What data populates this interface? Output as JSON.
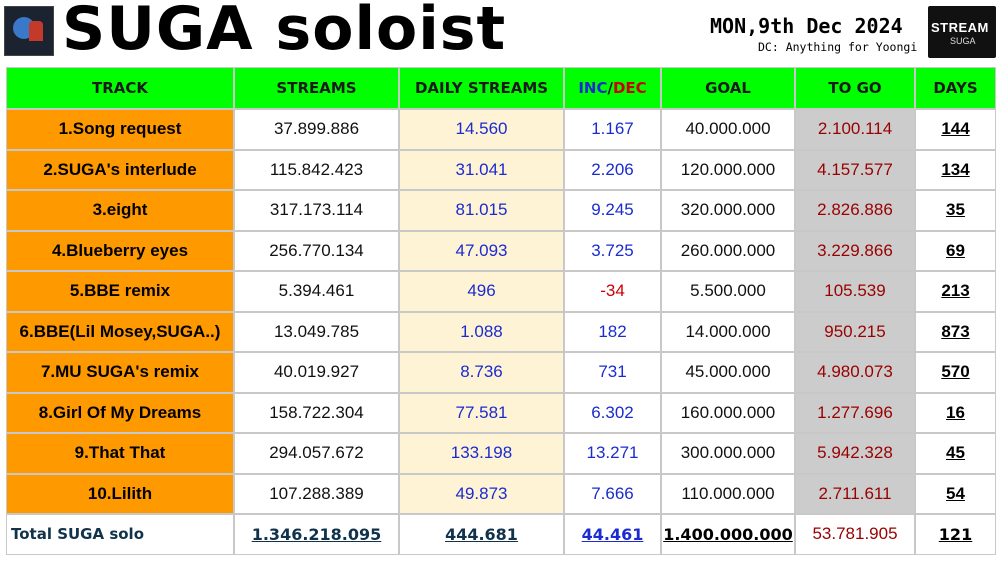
{
  "header": {
    "title": "SUGA soloist",
    "date": "MON,9th Dec 2024",
    "credit": "DC: Anything for Yoongi",
    "logo_line1": "STREAM",
    "logo_line2": "SUGA"
  },
  "columns": {
    "track": "TRACK",
    "streams": "STREAMS",
    "daily": "DAILY STREAMS",
    "inc": "INC",
    "slash": "/",
    "dec": "DEC",
    "goal": "GOAL",
    "togo": "TO GO",
    "days": "DAYS"
  },
  "rows": [
    {
      "track": "1.Song request",
      "streams": "37.899.886",
      "daily": "14.560",
      "inc": "1.167",
      "goal": "40.000.000",
      "togo": "2.100.114",
      "days": "144"
    },
    {
      "track": "2.SUGA's interlude",
      "streams": "115.842.423",
      "daily": "31.041",
      "inc": "2.206",
      "goal": "120.000.000",
      "togo": "4.157.577",
      "days": "134"
    },
    {
      "track": "3.eight",
      "streams": "317.173.114",
      "daily": "81.015",
      "inc": "9.245",
      "goal": "320.000.000",
      "togo": "2.826.886",
      "days": "35"
    },
    {
      "track": "4.Blueberry eyes",
      "streams": "256.770.134",
      "daily": "47.093",
      "inc": "3.725",
      "goal": "260.000.000",
      "togo": "3.229.866",
      "days": "69"
    },
    {
      "track": "5.BBE remix",
      "streams": "5.394.461",
      "daily": "496",
      "inc": "-34",
      "goal": "5.500.000",
      "togo": "105.539",
      "days": "213"
    },
    {
      "track": "6.BBE(Lil Mosey,SUGA..)",
      "streams": "13.049.785",
      "daily": "1.088",
      "inc": "182",
      "goal": "14.000.000",
      "togo": "950.215",
      "days": "873"
    },
    {
      "track": "7.MU SUGA's remix",
      "streams": "40.019.927",
      "daily": "8.736",
      "inc": "731",
      "goal": "45.000.000",
      "togo": "4.980.073",
      "days": "570"
    },
    {
      "track": "8.Girl Of My Dreams",
      "streams": "158.722.304",
      "daily": "77.581",
      "inc": "6.302",
      "goal": "160.000.000",
      "togo": "1.277.696",
      "days": "16"
    },
    {
      "track": "9.That That",
      "streams": "294.057.672",
      "daily": "133.198",
      "inc": "13.271",
      "goal": "300.000.000",
      "togo": "5.942.328",
      "days": "45"
    },
    {
      "track": "10.Lilith",
      "streams": "107.288.389",
      "daily": "49.873",
      "inc": "7.666",
      "goal": "110.000.000",
      "togo": "2.711.611",
      "days": "54"
    }
  ],
  "total": {
    "label": "Total SUGA solo",
    "streams": "1.346.218.095",
    "daily": "444.681",
    "inc": "44.461",
    "goal": "1.400.000.000",
    "togo": "53.781.905",
    "days": "121"
  },
  "colors": {
    "header_bg": "#00ff00",
    "track_bg": "#ff9900",
    "daily_bg": "#fff3d6",
    "togo_bg": "#cccccc",
    "blue_text": "#1a2ccf",
    "red_text": "#cc0000",
    "togo_text": "#990000"
  }
}
